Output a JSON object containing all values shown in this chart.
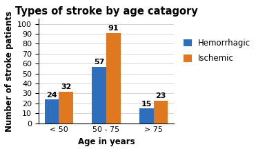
{
  "title": "Types of stroke by age catagory",
  "categories": [
    "< 50",
    "50 - 75",
    "> 75"
  ],
  "hemorrhagic": [
    24,
    57,
    15
  ],
  "ischemic": [
    32,
    91,
    23
  ],
  "bar_color_hemorrhagic": "#2e6fbd",
  "bar_color_ischemic": "#e07820",
  "xlabel": "Age in years",
  "ylabel": "Number of stroke patients",
  "ylim": [
    0,
    105
  ],
  "yticks": [
    0,
    10,
    20,
    30,
    40,
    50,
    60,
    70,
    80,
    90,
    100
  ],
  "legend_labels": [
    "Hemorrhagic",
    "Ischemic"
  ],
  "title_fontsize": 10.5,
  "label_fontsize": 8.5,
  "tick_fontsize": 8,
  "bar_width": 0.3,
  "value_label_fontsize": 8,
  "background_color": "#ffffff",
  "grid_color": "#d0d0d0"
}
